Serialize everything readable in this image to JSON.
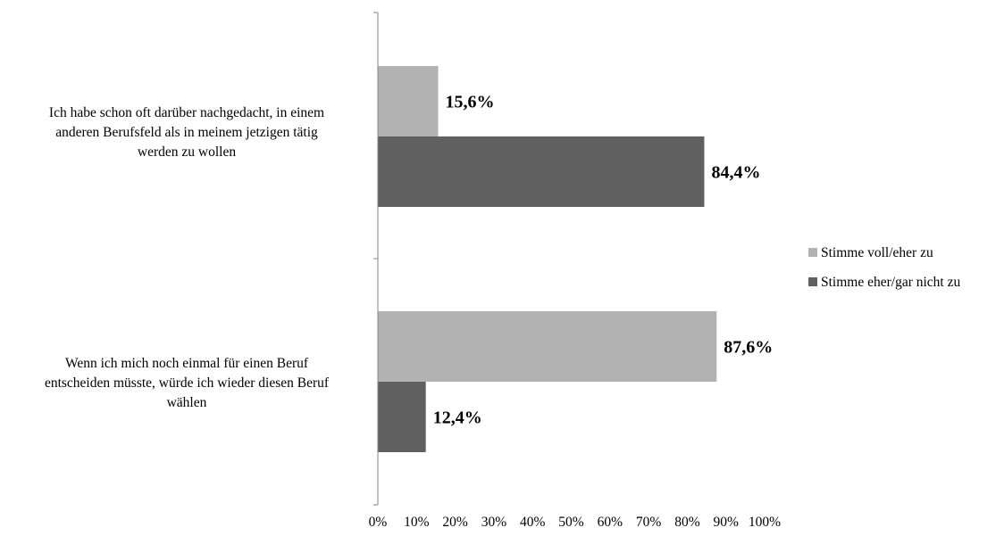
{
  "chart_data": {
    "type": "bar",
    "orientation": "horizontal",
    "categories": [
      [
        "Ich habe schon oft darüber nachgedacht, in einem",
        "anderen Berufsfeld als in meinem jetzigen tätig",
        "werden zu wollen"
      ],
      [
        "Wenn ich mich noch einmal für einen Beruf",
        "entscheiden müsste, würde ich wieder diesen Beruf",
        "wählen"
      ]
    ],
    "series": [
      {
        "name": "Stimme voll/eher zu",
        "color": "#b2b2b2",
        "values": [
          15.6,
          87.6
        ],
        "labels": [
          "15,6%",
          "87,6%"
        ]
      },
      {
        "name": "Stimme eher/gar nicht zu",
        "color": "#606060",
        "values": [
          84.4,
          12.4
        ],
        "labels": [
          "84,4%",
          "12,4%"
        ]
      }
    ],
    "xlim": [
      0,
      100
    ],
    "xticks": [
      "0%",
      "10%",
      "20%",
      "30%",
      "40%",
      "50%",
      "60%",
      "70%",
      "80%",
      "90%",
      "100%"
    ],
    "xlabel": "",
    "ylabel": "",
    "title": "",
    "grid": false,
    "legend_position": "right"
  }
}
